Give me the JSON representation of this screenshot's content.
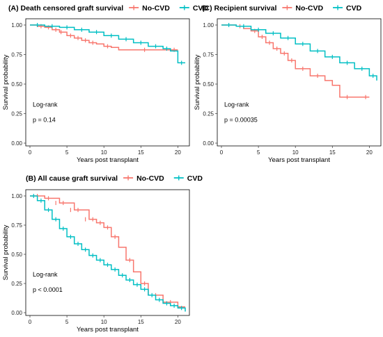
{
  "chart_data": [
    {
      "type": "line",
      "panel_title": "(A) Death censored graft survival",
      "xlabel": "Years post transplant",
      "ylabel": "Survival probability",
      "xlim": [
        0,
        21
      ],
      "ylim": [
        0,
        1.05
      ],
      "xticks": [
        "0",
        "5",
        "10",
        "15",
        "20"
      ],
      "yticks": [
        "0.00",
        "0.25",
        "0.50",
        "0.75",
        "1.00"
      ],
      "grid": false,
      "legend_position": "top",
      "annotation": [
        "Log-rank",
        "p = 0.14"
      ],
      "series": [
        {
          "name": "No-CVD",
          "color": "#F8766D",
          "x": [
            0,
            1,
            2,
            3,
            4,
            5,
            6,
            7,
            8,
            9,
            10,
            11,
            12,
            20
          ],
          "y": [
            1.0,
            0.99,
            0.98,
            0.96,
            0.94,
            0.91,
            0.89,
            0.87,
            0.85,
            0.84,
            0.82,
            0.81,
            0.79,
            0.79
          ],
          "censor_x": [
            1.5,
            2.5,
            3.5,
            4.2,
            5.5,
            6.5,
            7.5,
            8.5,
            10.5,
            15.5,
            19.5
          ],
          "censor_y": [
            0.99,
            0.98,
            0.96,
            0.94,
            0.91,
            0.89,
            0.87,
            0.85,
            0.82,
            0.79,
            0.79
          ]
        },
        {
          "name": "CVD",
          "color": "#00BFC4",
          "x": [
            0,
            2,
            4,
            6,
            8,
            10,
            12,
            14,
            16,
            18,
            19,
            20,
            21
          ],
          "y": [
            1.0,
            0.99,
            0.98,
            0.96,
            0.94,
            0.91,
            0.88,
            0.85,
            0.82,
            0.8,
            0.78,
            0.68,
            0.68
          ],
          "censor_x": [
            1,
            3,
            5,
            7,
            9,
            11,
            13,
            15,
            17,
            18.5,
            20.5
          ],
          "censor_y": [
            1.0,
            0.99,
            0.98,
            0.96,
            0.94,
            0.91,
            0.88,
            0.85,
            0.82,
            0.8,
            0.68
          ]
        }
      ]
    },
    {
      "type": "line",
      "panel_title": "(C) Recipient survival",
      "xlabel": "Years post transplant",
      "ylabel": "Survival probability",
      "xlim": [
        0,
        21
      ],
      "ylim": [
        0,
        1.05
      ],
      "xticks": [
        "0",
        "5",
        "10",
        "15",
        "20"
      ],
      "yticks": [
        "0.00",
        "0.25",
        "0.50",
        "0.75",
        "1.00"
      ],
      "grid": false,
      "legend_position": "top",
      "annotation": [
        "Log-rank",
        "p = 0.00035"
      ],
      "series": [
        {
          "name": "No-CVD",
          "color": "#F8766D",
          "x": [
            0,
            2,
            3,
            4,
            5,
            6,
            7,
            8,
            9,
            10,
            12,
            14,
            15,
            16,
            20
          ],
          "y": [
            1.0,
            0.99,
            0.97,
            0.95,
            0.9,
            0.85,
            0.8,
            0.76,
            0.7,
            0.63,
            0.57,
            0.53,
            0.49,
            0.39,
            0.39
          ],
          "censor_x": [
            2.5,
            4.5,
            5.5,
            6.5,
            7.5,
            8.5,
            9.5,
            11,
            13,
            17,
            19.5
          ],
          "censor_y": [
            0.99,
            0.95,
            0.9,
            0.85,
            0.8,
            0.76,
            0.7,
            0.63,
            0.57,
            0.39,
            0.39
          ]
        },
        {
          "name": "CVD",
          "color": "#00BFC4",
          "x": [
            0,
            2,
            4,
            6,
            8,
            10,
            12,
            14,
            16,
            18,
            20,
            21
          ],
          "y": [
            1.0,
            0.99,
            0.96,
            0.93,
            0.89,
            0.84,
            0.78,
            0.73,
            0.68,
            0.63,
            0.57,
            0.53
          ],
          "censor_x": [
            1,
            3,
            5,
            7,
            9,
            11,
            13,
            15,
            17,
            19,
            20.5
          ],
          "censor_y": [
            1.0,
            0.99,
            0.96,
            0.93,
            0.89,
            0.84,
            0.78,
            0.73,
            0.68,
            0.63,
            0.57
          ]
        }
      ]
    },
    {
      "type": "line",
      "panel_title": "(B) All cause graft survival",
      "xlabel": "Years post transplant",
      "ylabel": "Survival probability",
      "xlim": [
        0,
        21
      ],
      "ylim": [
        0,
        1.05
      ],
      "xticks": [
        "0",
        "5",
        "10",
        "15",
        "20"
      ],
      "yticks": [
        "0.00",
        "0.25",
        "0.50",
        "0.75",
        "1.00"
      ],
      "grid": false,
      "legend_position": "top",
      "annotation": [
        "Log-rank",
        "p < 0.0001"
      ],
      "series": [
        {
          "name": "No-CVD",
          "color": "#F8766D",
          "x": [
            0,
            2,
            4,
            6,
            8,
            9,
            10,
            11,
            12,
            13,
            14,
            15,
            16,
            18,
            20,
            21
          ],
          "y": [
            1.0,
            0.98,
            0.94,
            0.88,
            0.8,
            0.77,
            0.73,
            0.65,
            0.56,
            0.45,
            0.35,
            0.25,
            0.15,
            0.09,
            0.05,
            0.05
          ],
          "censor_x": [
            1,
            2.5,
            3.5,
            4.5,
            5.5,
            6.5,
            7.5,
            8.5,
            9.5,
            10.5,
            11.5,
            13.5,
            15.5,
            17,
            19
          ],
          "censor_y": [
            1.0,
            0.98,
            0.94,
            0.94,
            0.88,
            0.88,
            0.8,
            0.8,
            0.77,
            0.73,
            0.65,
            0.45,
            0.25,
            0.15,
            0.09
          ]
        },
        {
          "name": "CVD",
          "color": "#00BFC4",
          "x": [
            0,
            1,
            2,
            3,
            4,
            5,
            6,
            7,
            8,
            9,
            10,
            11,
            12,
            13,
            14,
            15,
            16,
            17,
            18,
            19,
            20,
            21
          ],
          "y": [
            1.0,
            0.96,
            0.88,
            0.8,
            0.72,
            0.65,
            0.59,
            0.54,
            0.49,
            0.45,
            0.41,
            0.37,
            0.32,
            0.28,
            0.24,
            0.2,
            0.15,
            0.11,
            0.08,
            0.06,
            0.04,
            0.01
          ],
          "censor_x": [
            0.5,
            1.5,
            2.5,
            3.5,
            4.5,
            5.5,
            6.5,
            7.5,
            8.5,
            9.5,
            10.5,
            11.5,
            12.5,
            13.5,
            14.5,
            15.5,
            16.5,
            17.5,
            18.5,
            19.5,
            20.5
          ],
          "censor_y": [
            1.0,
            0.96,
            0.88,
            0.8,
            0.72,
            0.65,
            0.59,
            0.54,
            0.49,
            0.45,
            0.41,
            0.37,
            0.32,
            0.28,
            0.24,
            0.2,
            0.15,
            0.11,
            0.08,
            0.06,
            0.04
          ]
        }
      ]
    }
  ]
}
